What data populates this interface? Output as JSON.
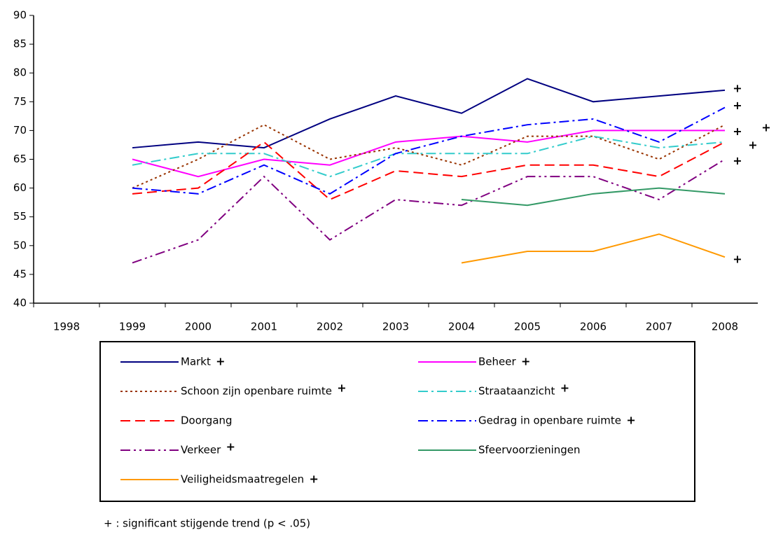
{
  "chart_data": {
    "type": "line",
    "categories": [
      "1998",
      "1999",
      "2000",
      "2001",
      "2002",
      "2003",
      "2004",
      "2005",
      "2006",
      "2007",
      "2008"
    ],
    "ylim": [
      40,
      90
    ],
    "yticks": [
      40,
      45,
      50,
      55,
      60,
      65,
      70,
      75,
      80,
      85,
      90
    ],
    "grid": false,
    "legend": "bottom",
    "series": [
      {
        "name": "Markt",
        "color": "#000080",
        "style": "solid",
        "significance": "+",
        "significance_color": "#000080",
        "values": [
          null,
          67,
          68,
          67,
          72,
          76,
          73,
          79,
          75,
          76,
          77
        ]
      },
      {
        "name": "Beheer",
        "color": "#ff00ff",
        "style": "solid",
        "significance": "+",
        "significance_color": "#ff00ff",
        "values": [
          null,
          65,
          62,
          65,
          64,
          68,
          69,
          68,
          70,
          70,
          70
        ]
      },
      {
        "name": "Schoon zijn openbare ruimte",
        "color": "#993300",
        "style": "dotted",
        "significance": "+",
        "significance_color": "#993300",
        "values": [
          null,
          60,
          65,
          71,
          65,
          67,
          64,
          69,
          69,
          65,
          71
        ]
      },
      {
        "name": "Straataanzicht",
        "color": "#33cccc",
        "style": "dashdot",
        "significance": "+",
        "significance_color": "#66ffff",
        "values": [
          null,
          64,
          66,
          66,
          62,
          66,
          66,
          66,
          69,
          67,
          68
        ]
      },
      {
        "name": "Doorgang",
        "color": "#ff0000",
        "style": "dashed",
        "values": [
          null,
          59,
          60,
          68,
          58,
          63,
          62,
          64,
          64,
          62,
          68
        ]
      },
      {
        "name": "Gedrag in openbare ruimte",
        "color": "#0000ff",
        "style": "dashdot",
        "significance": "+",
        "significance_color": "#0000ff",
        "values": [
          null,
          60,
          59,
          64,
          59,
          66,
          69,
          71,
          72,
          68,
          74
        ]
      },
      {
        "name": "Verkeer",
        "color": "#800080",
        "style": "dashdotdot",
        "significance": "+",
        "significance_color": "#800080",
        "values": [
          null,
          47,
          51,
          62,
          51,
          58,
          57,
          62,
          62,
          58,
          65
        ]
      },
      {
        "name": "Sfeervoorzieningen",
        "color": "#339966",
        "style": "solid",
        "values": [
          null,
          null,
          null,
          null,
          null,
          null,
          58,
          57,
          59,
          60,
          59
        ]
      },
      {
        "name": "Veiligheidsmaatregelen",
        "color": "#ff9900",
        "style": "solid",
        "significance": "+",
        "significance_color": "#ffcc00",
        "values": [
          null,
          null,
          null,
          null,
          null,
          null,
          47,
          49,
          49,
          52,
          48
        ]
      }
    ],
    "footnote": "+ : significant stijgende trend (p < .05)"
  }
}
